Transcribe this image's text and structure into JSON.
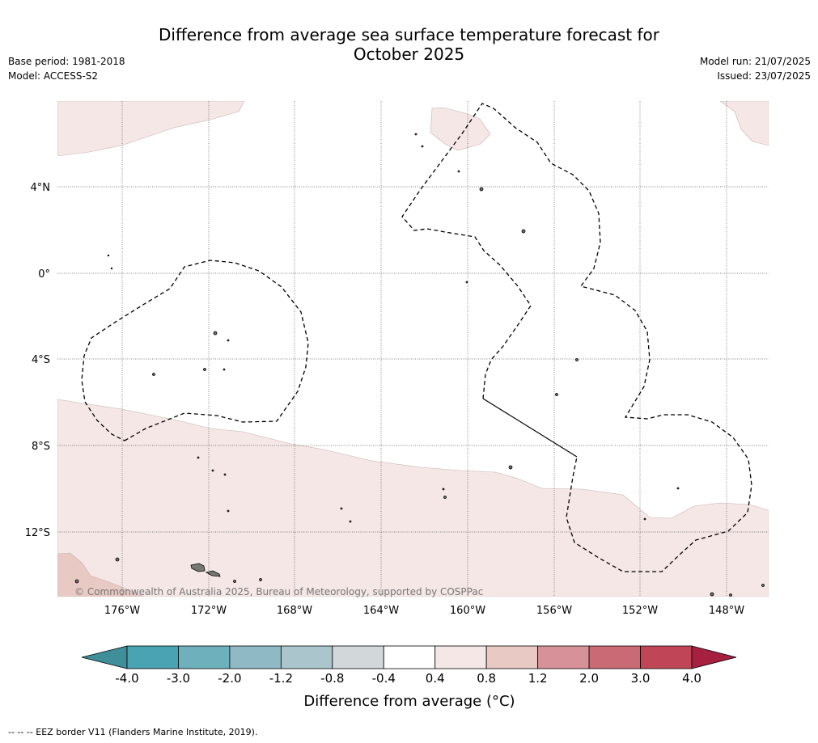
{
  "header": {
    "title_line1": "Difference from average sea surface temperature forecast for",
    "title_line2": "October 2025",
    "base_period": "Base period: 1981-2018",
    "model": "Model: ACCESS-S2",
    "model_run": "Model run: 21/07/2025",
    "issued": "Issued: 23/07/2025"
  },
  "map": {
    "lat_labels": [
      "4°N",
      "0°",
      "4°S",
      "8°S",
      "12°S"
    ],
    "lon_labels": [
      "176°W",
      "172°W",
      "168°W",
      "164°W",
      "160°W",
      "156°W",
      "152°W",
      "148°W"
    ],
    "copyright": "© Commonwealth of Australia 2025, Bureau of Meteorology, supported by COSPPac",
    "anomaly_fill_color": "#f4e7e6",
    "anomaly_fill_color_warm2": "#e8c9c4",
    "eez_line_color": "#000000"
  },
  "colorbar": {
    "label": "Difference from average (°C)",
    "ticks": [
      "-4.0",
      "-3.0",
      "-2.0",
      "-1.2",
      "-0.8",
      "-0.4",
      "0.4",
      "0.8",
      "1.2",
      "2.0",
      "3.0",
      "4.0"
    ],
    "colors": [
      "#3f8e9a",
      "#4aa3b3",
      "#6eb1bd",
      "#8fb9c4",
      "#aac6cc",
      "#d2d7d9",
      "#ffffff",
      "#f4e7e6",
      "#e8c9c4",
      "#d79299",
      "#c96a75",
      "#c04657",
      "#a82040"
    ]
  },
  "footer": {
    "eez_legend": "--  --  -- EEZ border V11 (Flanders Marine Institute, 2019)."
  }
}
